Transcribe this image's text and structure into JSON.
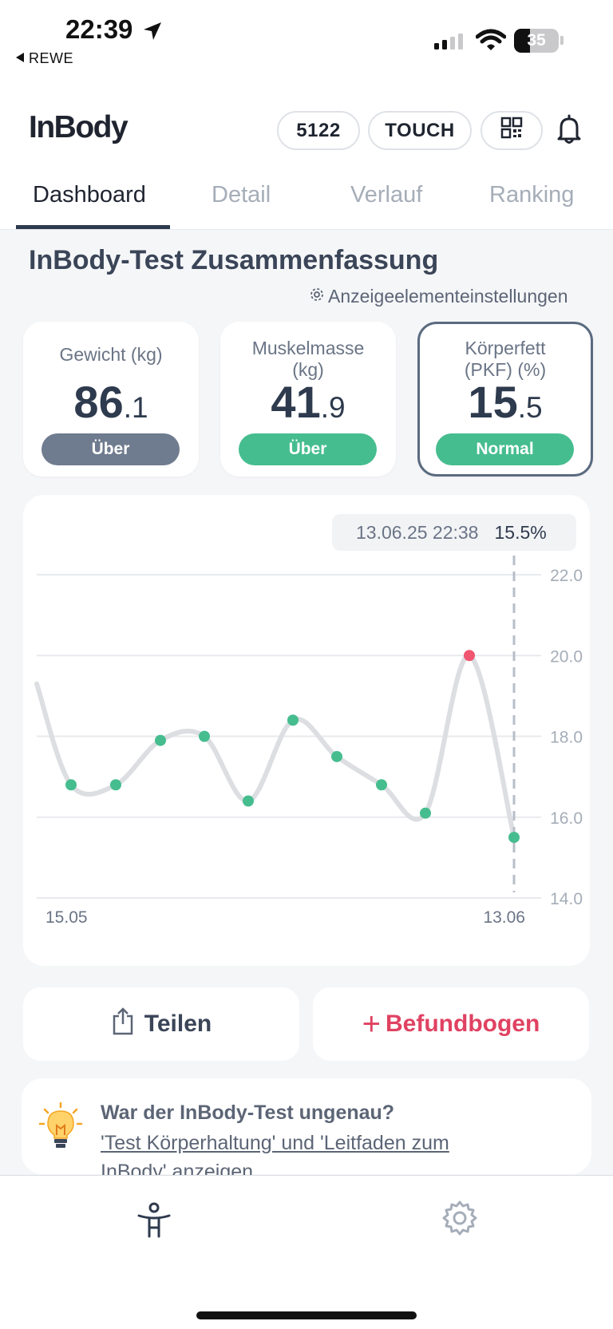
{
  "status": {
    "time": "22:39",
    "back_app": "REWE",
    "battery": "35",
    "battery_level": 0.35
  },
  "header": {
    "logo": "InBody",
    "code_pill": "5122",
    "touch_pill": "TOUCH"
  },
  "tabs": [
    "Dashboard",
    "Detail",
    "Verlauf",
    "Ranking"
  ],
  "active_tab": "Dashboard",
  "summary": {
    "title": "InBody-Test Zusammenfassung",
    "settings_link": "Anzeigeelementeinstellungen"
  },
  "metrics": [
    {
      "label": "Gewicht",
      "unit": "(kg)",
      "int": "86",
      "dec": ".1",
      "status": "Über",
      "status_color": "#6f7b8e"
    },
    {
      "label": "Muskelmasse",
      "unit": "(kg)",
      "int": "41",
      "dec": ".9",
      "status": "Über",
      "status_color": "#46bd8f"
    },
    {
      "label": "Körperfett",
      "label2": "(PKF)",
      "unit": "(%)",
      "int": "15",
      "dec": ".5",
      "status": "Normal",
      "status_color": "#46bd8f",
      "selected": true
    }
  ],
  "chart_tooltip": {
    "date": "13.06.25 22:38",
    "value": "15.5%"
  },
  "chart_data": {
    "type": "line",
    "x_start_label": "15.05",
    "x_end_label": "13.06",
    "y_ticks": [
      "22.0",
      "20.0",
      "18.0",
      "16.0",
      "14.0"
    ],
    "ylim": [
      14,
      22
    ],
    "series": [
      {
        "values": [
          16.8,
          16.8,
          17.9,
          18.0,
          16.4,
          18.4,
          17.5,
          16.8,
          16.1,
          20.0,
          15.5
        ],
        "highlight_index": 9,
        "leading_value": 19.3
      }
    ],
    "colors": {
      "line": "#dcdee2",
      "point": "#46bd8f",
      "highlight": "#f0566f",
      "grid": "#e8eaee",
      "tick": "#a5adb8"
    }
  },
  "buttons": {
    "share": "Teilen",
    "report": "Befundbogen"
  },
  "info": {
    "question": "War der InBody-Test ungenau?",
    "link": "'Test Körperhaltung' und 'Leitfaden zum InBody' anzeigen"
  }
}
